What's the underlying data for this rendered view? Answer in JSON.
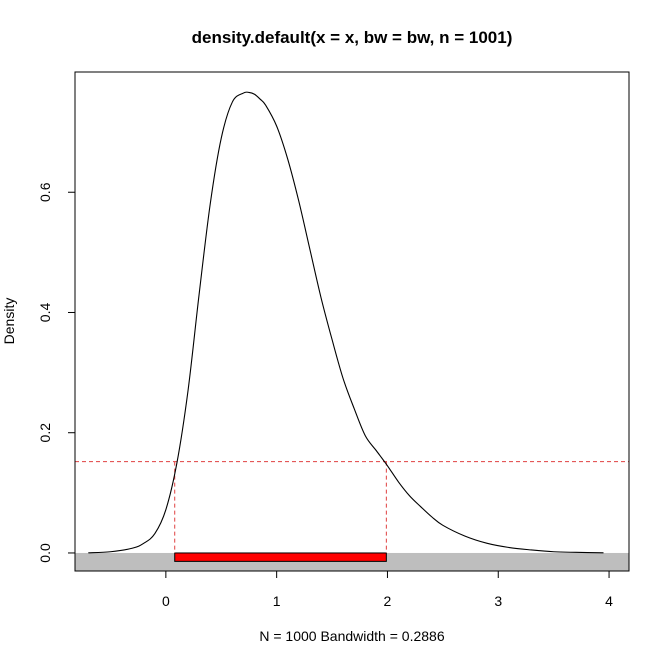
{
  "chart_data": {
    "type": "line",
    "title": "density.default(x = x, bw = bw, n = 1001)",
    "xlabel": "N = 1000   Bandwidth = 0.2886",
    "ylabel": "Density",
    "xlim": [
      -0.82,
      4.18
    ],
    "ylim": [
      -0.03,
      0.8
    ],
    "x_ticks": [
      0,
      1,
      2,
      3,
      4
    ],
    "y_ticks": [
      0.0,
      0.2,
      0.4,
      0.6
    ],
    "x_tick_labels": [
      "0",
      "1",
      "2",
      "3",
      "4"
    ],
    "y_tick_labels": [
      "0.0",
      "0.2",
      "0.4",
      "0.6"
    ],
    "grid": false,
    "legend": "none",
    "series": [
      {
        "x": [
          -0.7,
          -0.5,
          -0.3,
          -0.2,
          -0.1,
          0.0,
          0.1,
          0.2,
          0.3,
          0.4,
          0.5,
          0.6,
          0.7,
          0.75,
          0.8,
          0.85,
          0.9,
          1.0,
          1.1,
          1.2,
          1.3,
          1.4,
          1.5,
          1.6,
          1.7,
          1.8,
          1.9,
          2.0,
          2.1,
          2.2,
          2.3,
          2.4,
          2.5,
          2.7,
          2.9,
          3.1,
          3.3,
          3.5,
          3.7,
          3.95
        ],
        "y": [
          0.0003,
          0.002,
          0.008,
          0.016,
          0.032,
          0.072,
          0.15,
          0.27,
          0.43,
          0.58,
          0.69,
          0.75,
          0.765,
          0.766,
          0.763,
          0.755,
          0.745,
          0.71,
          0.655,
          0.585,
          0.505,
          0.425,
          0.355,
          0.29,
          0.24,
          0.195,
          0.17,
          0.145,
          0.118,
          0.095,
          0.077,
          0.06,
          0.046,
          0.028,
          0.016,
          0.009,
          0.005,
          0.002,
          0.001,
          0.0003
        ],
        "color": "#000000"
      }
    ],
    "annotations": {
      "threshold_y": 0.152,
      "interval_x": [
        0.08,
        1.99
      ],
      "interval_bar_ymin": -0.014,
      "interval_bar_ymax": 0.0,
      "baseline_band_ymin": -0.03,
      "baseline_band_ymax": 0.0
    },
    "colors": {
      "curve": "#000000",
      "dashed": "#e04040",
      "interval_bar": "#ff0000",
      "band": "#bebebe"
    }
  }
}
